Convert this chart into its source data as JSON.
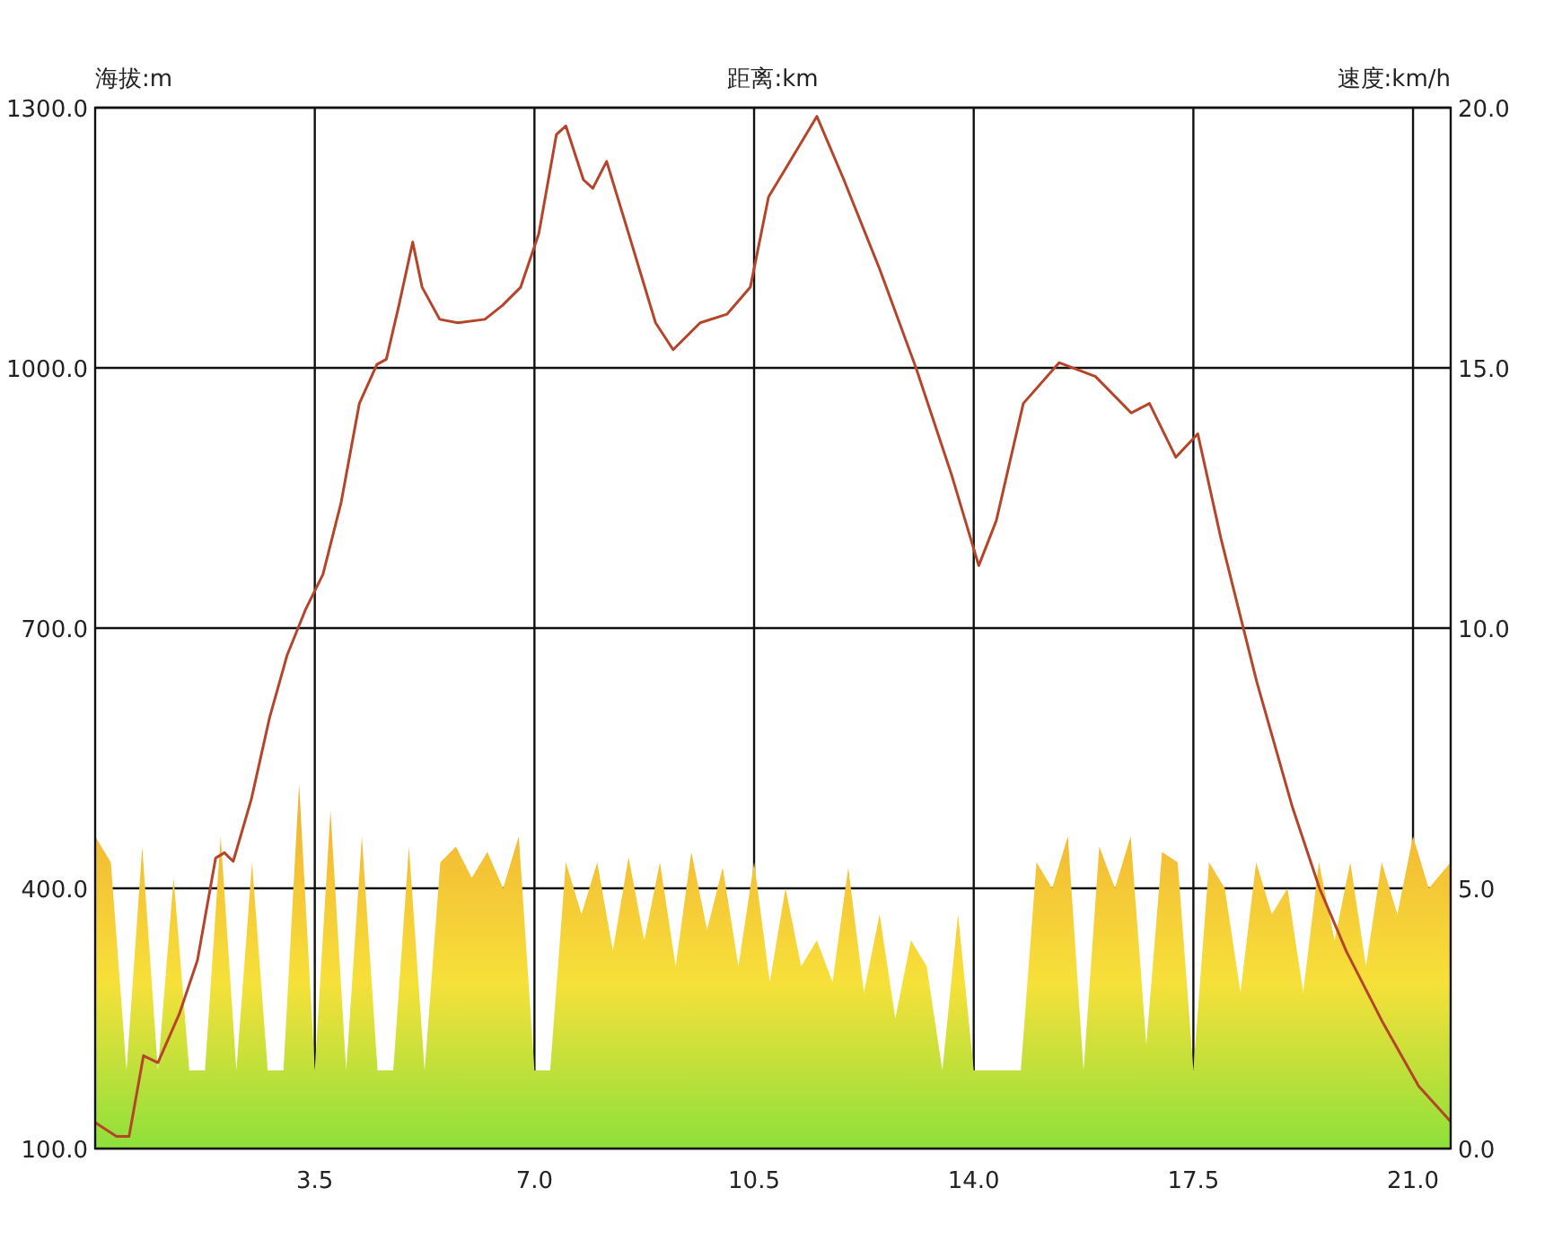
{
  "chart_data": {
    "type": "line",
    "xlabel": "距离:km",
    "ylabel": "海拔:m",
    "y2label": "速度:km/h",
    "xlim": [
      0,
      21.6
    ],
    "xticks": [
      3.5,
      {
        "value": 7,
        "label": "7.0"
      },
      10.5,
      {
        "value": 14,
        "label": "14.0"
      },
      17.5,
      {
        "value": 21,
        "label": "21.0"
      }
    ],
    "ylim": [
      100,
      1300
    ],
    "yticks": [
      {
        "value": 100,
        "label": "100.0"
      },
      {
        "value": 400,
        "label": "400.0"
      },
      {
        "value": 700,
        "label": "700.0"
      },
      {
        "value": 1000,
        "label": "1000.0"
      },
      {
        "value": 1300,
        "label": "1300.0"
      }
    ],
    "y2lim": [
      0,
      20
    ],
    "y2ticks": [
      {
        "value": 0,
        "label": "0.0"
      },
      {
        "value": 5,
        "label": "5.0"
      },
      {
        "value": 10,
        "label": "10.0"
      },
      {
        "value": 15,
        "label": "15.0"
      },
      {
        "value": 20,
        "label": "20.0"
      }
    ],
    "grid": true,
    "series": [
      {
        "type": "area",
        "axis": "y2",
        "color": "#f0a030",
        "x": [
          0,
          0.25,
          0.5,
          0.75,
          1,
          1.25,
          1.5,
          1.75,
          2,
          2.25,
          2.5,
          2.75,
          3,
          3.25,
          3.5,
          3.75,
          4,
          4.25,
          4.5,
          4.75,
          5,
          5.25,
          5.5,
          5.75,
          6,
          6.25,
          6.5,
          6.75,
          7,
          7.25,
          7.5,
          7.75,
          8,
          8.25,
          8.5,
          8.75,
          9,
          9.25,
          9.5,
          9.75,
          10,
          10.25,
          10.5,
          10.75,
          11,
          11.25,
          11.5,
          11.75,
          12,
          12.25,
          12.5,
          12.75,
          13,
          13.25,
          13.5,
          13.75,
          14,
          14.25,
          14.5,
          14.75,
          15,
          15.25,
          15.5,
          15.75,
          16,
          16.25,
          16.5,
          16.75,
          17,
          17.25,
          17.5,
          17.75,
          18,
          18.25,
          18.5,
          18.75,
          19,
          19.25,
          19.5,
          19.75,
          20,
          20.25,
          20.5,
          20.75,
          21,
          21.25,
          21.6
        ],
        "values": [
          6,
          5.5,
          1.5,
          5.8,
          1.5,
          5.2,
          1.5,
          1.5,
          6,
          1.5,
          5.5,
          1.5,
          1.5,
          7,
          1.5,
          6.5,
          1.5,
          6,
          1.5,
          1.5,
          5.8,
          1.5,
          5.5,
          5.8,
          5.2,
          5.7,
          5,
          6,
          1.5,
          1.5,
          5.5,
          4.5,
          5.5,
          3.8,
          5.6,
          4,
          5.5,
          3.5,
          5.7,
          4.2,
          5.4,
          3.5,
          5.5,
          3.2,
          5,
          3.5,
          4,
          3.2,
          5.4,
          3,
          4.5,
          2.5,
          4,
          3.5,
          1.5,
          4.5,
          1.5,
          1.5,
          1.5,
          1.5,
          5.5,
          5,
          6,
          1.5,
          5.8,
          5,
          6,
          2,
          5.7,
          5.5,
          1.5,
          5.5,
          5,
          3,
          5.5,
          4.5,
          5,
          3,
          5.5,
          4,
          5.5,
          3.5,
          5.5,
          4.5,
          6,
          5,
          5.5
        ]
      },
      {
        "color": "#b5452a",
        "x": [
          0,
          0.34,
          0.54,
          0.77,
          1,
          1.34,
          1.63,
          1.92,
          2.06,
          2.2,
          2.49,
          2.78,
          3.06,
          3.35,
          3.63,
          3.92,
          4.21,
          4.49,
          4.64,
          4.84,
          5.06,
          5.21,
          5.49,
          5.78,
          6.21,
          6.49,
          6.78,
          7.07,
          7.35,
          7.5,
          7.78,
          7.93,
          8.15,
          8.5,
          8.93,
          9.21,
          9.64,
          10.07,
          10.44,
          10.73,
          11.07,
          11.5,
          11.93,
          12.5,
          13.08,
          13.65,
          14.08,
          14.36,
          14.79,
          15.36,
          15.94,
          16.51,
          16.8,
          17.22,
          17.57,
          17.94,
          18.51,
          19.08,
          19.51,
          19.94,
          20.52,
          21.09,
          21.6
        ],
        "values": [
          130,
          114,
          114,
          207,
          199,
          255,
          317,
          435,
          441,
          431,
          503,
          597,
          669,
          721,
          762,
          845,
          959,
          1004,
          1010,
          1072,
          1145,
          1093,
          1056,
          1052,
          1056,
          1072,
          1093,
          1155,
          1269,
          1279,
          1217,
          1207,
          1238,
          1155,
          1052,
          1021,
          1052,
          1062,
          1093,
          1197,
          1238,
          1290,
          1217,
          1114,
          1000,
          876,
          772,
          824,
          959,
          1006,
          990,
          948,
          959,
          897,
          924,
          803,
          638,
          493,
          400,
          327,
          245,
          172,
          131
        ]
      }
    ]
  }
}
